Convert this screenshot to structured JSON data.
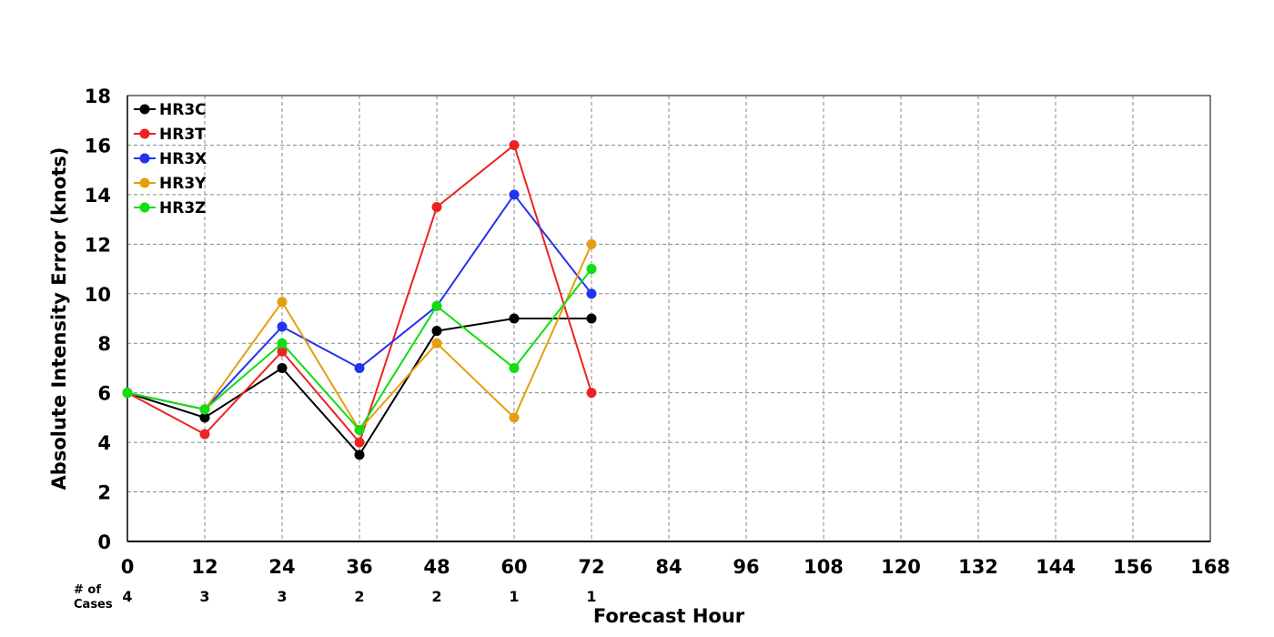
{
  "chart_data": {
    "type": "line",
    "xlabel": "Forecast Hour",
    "ylabel": "Absolute Intensity Error (knots)",
    "xlim": [
      0,
      168
    ],
    "ylim": [
      0,
      18
    ],
    "x_ticks": [
      0,
      12,
      24,
      36,
      48,
      60,
      72,
      84,
      96,
      108,
      120,
      132,
      144,
      156,
      168
    ],
    "y_ticks": [
      0,
      2,
      4,
      6,
      8,
      10,
      12,
      14,
      16,
      18
    ],
    "grid": true,
    "legend_position": "top-left",
    "x": [
      0,
      12,
      24,
      36,
      48,
      60,
      72
    ],
    "series": [
      {
        "name": "HR3C",
        "color": "#000000",
        "values": [
          6,
          5,
          7,
          3.5,
          8.5,
          9,
          9
        ]
      },
      {
        "name": "HR3T",
        "color": "#ee2222",
        "values": [
          6,
          4.33,
          7.67,
          4,
          13.5,
          16,
          6
        ]
      },
      {
        "name": "HR3X",
        "color": "#2233ee",
        "values": [
          6,
          5.33,
          8.67,
          7,
          9.5,
          14,
          10
        ]
      },
      {
        "name": "HR3Y",
        "color": "#e59e10",
        "values": [
          6,
          5.33,
          9.67,
          4.5,
          8,
          5,
          12
        ]
      },
      {
        "name": "HR3Z",
        "color": "#11dd11",
        "values": [
          6,
          5.33,
          8,
          4.5,
          9.5,
          7,
          11
        ]
      }
    ],
    "cases": {
      "label_line1": "# of",
      "label_line2": "Cases",
      "hours": [
        0,
        12,
        24,
        36,
        48,
        60,
        72
      ],
      "counts": [
        "4",
        "3",
        "3",
        "2",
        "2",
        "1",
        "1"
      ]
    }
  }
}
